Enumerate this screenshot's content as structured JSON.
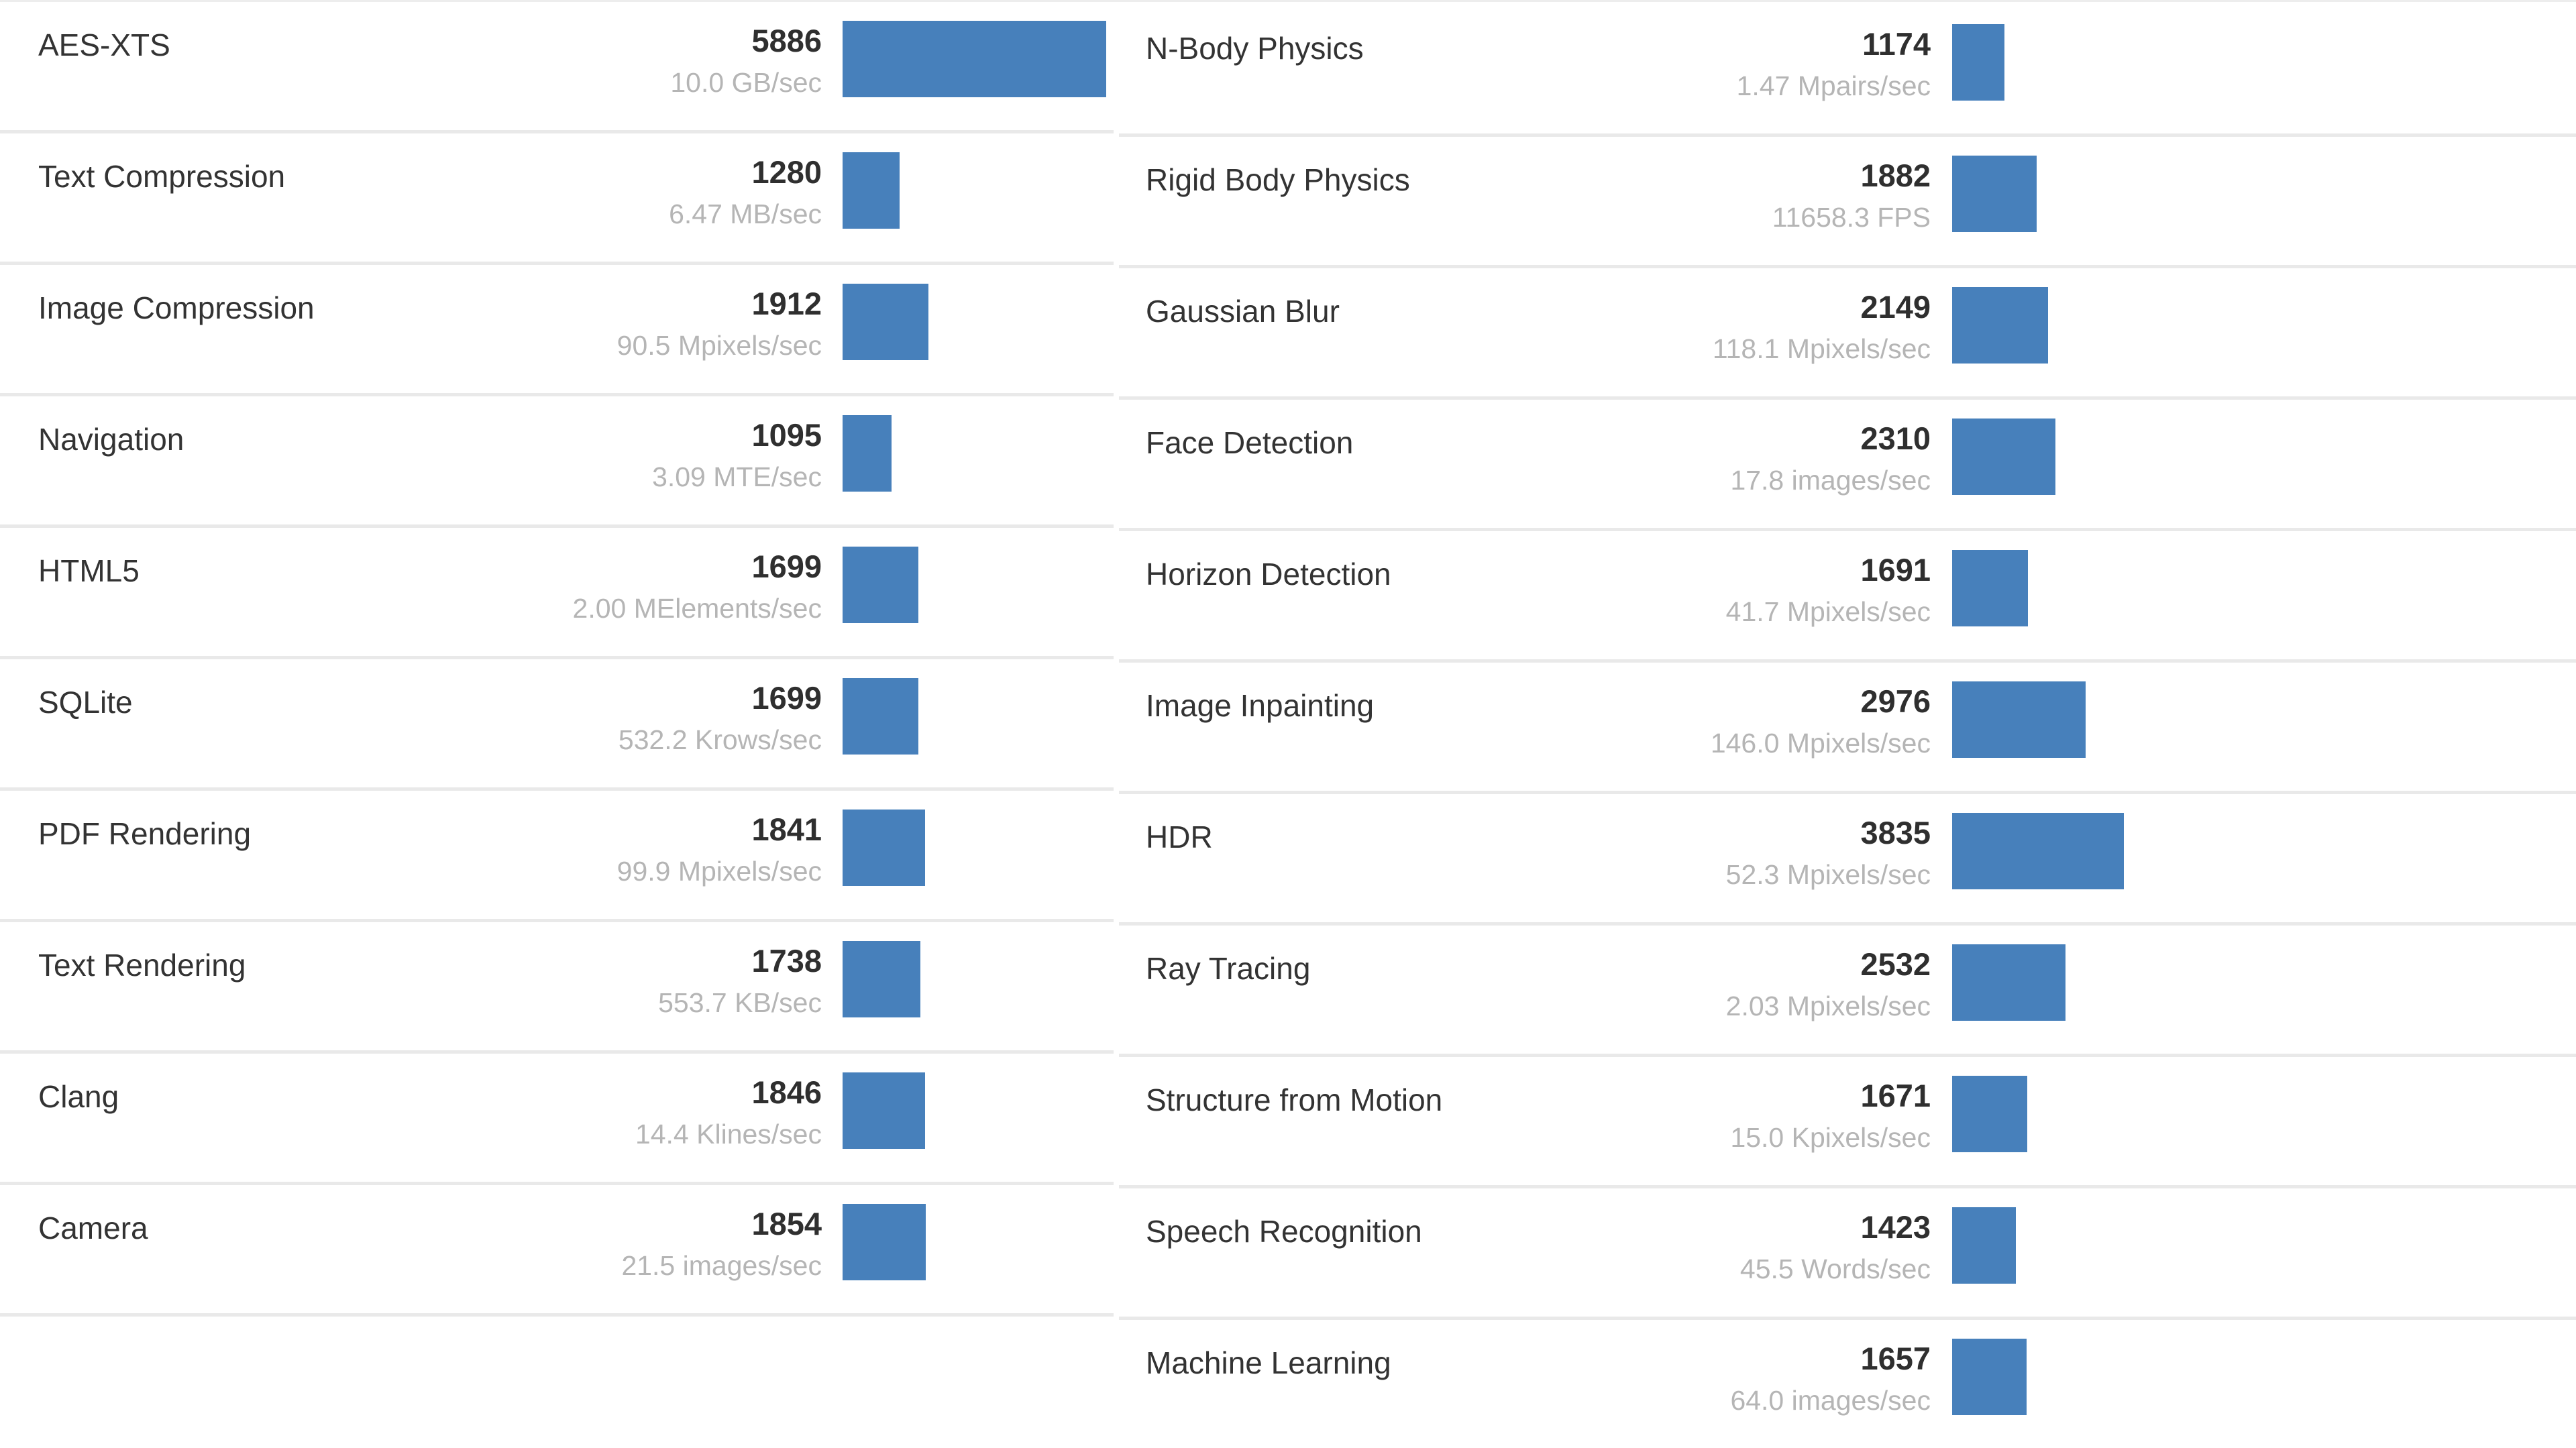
{
  "page": {
    "type": "benchmark-results",
    "background_color": "#ffffff",
    "divider_color": "#e9e9e9"
  },
  "colors": {
    "bar": "#4780bb",
    "benchmark_name": "#333333",
    "score": "#2f2f2f",
    "throughput": "#b5b5b5"
  },
  "benchmark": {
    "max_score": 5886
  },
  "sections": [
    {
      "name": "left-column",
      "rows": [
        {
          "label": "AES-XTS",
          "score": 5886,
          "unit": "10.0 GB/sec"
        },
        {
          "label": "Text Compression",
          "score": 1280,
          "unit": "6.47 MB/sec"
        },
        {
          "label": "Image Compression",
          "score": 1912,
          "unit": "90.5 Mpixels/sec"
        },
        {
          "label": "Navigation",
          "score": 1095,
          "unit": "3.09 MTE/sec"
        },
        {
          "label": "HTML5",
          "score": 1699,
          "unit": "2.00 MElements/sec"
        },
        {
          "label": "SQLite",
          "score": 1699,
          "unit": "532.2 Krows/sec"
        },
        {
          "label": "PDF Rendering",
          "score": 1841,
          "unit": "99.9 Mpixels/sec"
        },
        {
          "label": "Text Rendering",
          "score": 1738,
          "unit": "553.7 KB/sec"
        },
        {
          "label": "Clang",
          "score": 1846,
          "unit": "14.4 Klines/sec"
        },
        {
          "label": "Camera",
          "score": 1854,
          "unit": "21.5 images/sec"
        }
      ]
    },
    {
      "name": "right-column",
      "rows": [
        {
          "label": "N-Body Physics",
          "score": 1174,
          "unit": "1.47 Mpairs/sec"
        },
        {
          "label": "Rigid Body Physics",
          "score": 1882,
          "unit": "11658.3 FPS"
        },
        {
          "label": "Gaussian Blur",
          "score": 2149,
          "unit": "118.1 Mpixels/sec"
        },
        {
          "label": "Face Detection",
          "score": 2310,
          "unit": "17.8 images/sec"
        },
        {
          "label": "Horizon Detection",
          "score": 1691,
          "unit": "41.7 Mpixels/sec"
        },
        {
          "label": "Image Inpainting",
          "score": 2976,
          "unit": "146.0 Mpixels/sec"
        },
        {
          "label": "HDR",
          "score": 3835,
          "unit": "52.3 Mpixels/sec"
        },
        {
          "label": "Ray Tracing",
          "score": 2532,
          "unit": "2.03 Mpixels/sec"
        },
        {
          "label": "Structure from Motion",
          "score": 1671,
          "unit": "15.0 Kpixels/sec"
        },
        {
          "label": "Speech Recognition",
          "score": 1423,
          "unit": "45.5 Words/sec"
        },
        {
          "label": "Machine Learning",
          "score": 1657,
          "unit": "64.0 images/sec"
        }
      ]
    }
  ],
  "chart_data": [
    {
      "type": "bar",
      "orientation": "horizontal",
      "title": "Benchmark scores (left column)",
      "categories": [
        "AES-XTS",
        "Text Compression",
        "Image Compression",
        "Navigation",
        "HTML5",
        "SQLite",
        "PDF Rendering",
        "Text Rendering",
        "Clang",
        "Camera"
      ],
      "values": [
        5886,
        1280,
        1912,
        1095,
        1699,
        1699,
        1841,
        1738,
        1846,
        1854
      ],
      "value_labels": [
        "10.0 GB/sec",
        "6.47 MB/sec",
        "90.5 Mpixels/sec",
        "3.09 MTE/sec",
        "2.00 MElements/sec",
        "532.2 Krows/sec",
        "99.9 Mpixels/sec",
        "553.7 KB/sec",
        "14.4 Klines/sec",
        "21.5 images/sec"
      ],
      "xlim": [
        0,
        5886
      ],
      "bar_color": "#4780bb",
      "grid": false,
      "legend": false
    },
    {
      "type": "bar",
      "orientation": "horizontal",
      "title": "Benchmark scores (right column)",
      "categories": [
        "N-Body Physics",
        "Rigid Body Physics",
        "Gaussian Blur",
        "Face Detection",
        "Horizon Detection",
        "Image Inpainting",
        "HDR",
        "Ray Tracing",
        "Structure from Motion",
        "Speech Recognition",
        "Machine Learning"
      ],
      "values": [
        1174,
        1882,
        2149,
        2310,
        1691,
        2976,
        3835,
        2532,
        1671,
        1423,
        1657
      ],
      "value_labels": [
        "1.47 Mpairs/sec",
        "11658.3 FPS",
        "118.1 Mpixels/sec",
        "17.8 images/sec",
        "41.7 Mpixels/sec",
        "146.0 Mpixels/sec",
        "52.3 Mpixels/sec",
        "2.03 Mpixels/sec",
        "15.0 Kpixels/sec",
        "45.5 Words/sec",
        "64.0 images/sec"
      ],
      "xlim": [
        0,
        5886
      ],
      "bar_color": "#4780bb",
      "grid": false,
      "legend": false
    }
  ]
}
